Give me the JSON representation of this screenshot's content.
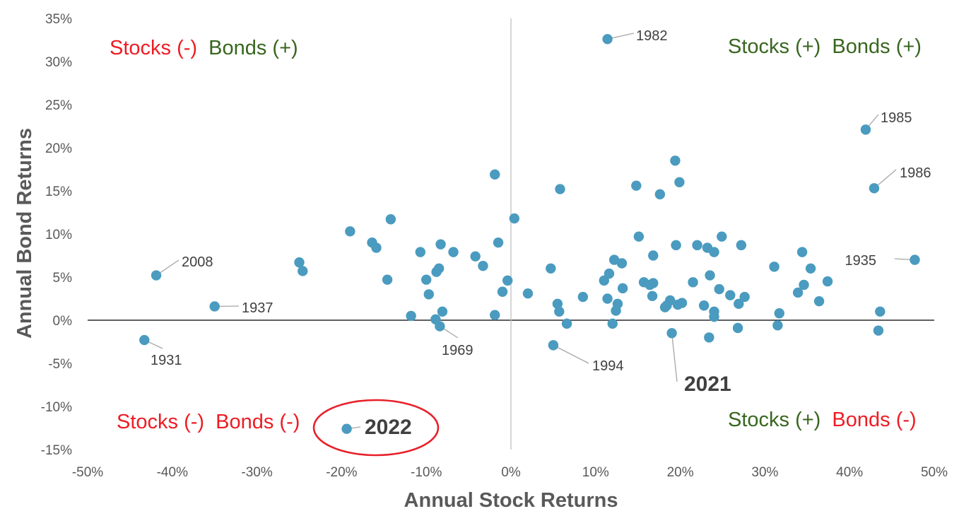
{
  "colors": {
    "point": "#4a9bbf",
    "red": "#ee1c24",
    "green": "#38661f",
    "axis_text": "#595959",
    "leader": "#a6a6a6",
    "circle": "#e8202a"
  },
  "quadrants": {
    "top_left": {
      "stocks": "Stocks (-)",
      "bonds": "Bonds (+)"
    },
    "top_right": {
      "stocks": "Stocks (+)",
      "bonds": "Bonds (+)"
    },
    "bottom_left": {
      "stocks": "Stocks (-)",
      "bonds": "Bonds (-)"
    },
    "bottom_right": {
      "stocks": "Stocks (+)",
      "bonds": "Bonds (-)"
    }
  },
  "chart_data": {
    "type": "scatter",
    "title": "",
    "xlabel": "Annual Stock Returns",
    "ylabel": "Annual Bond Returns",
    "xlim": [
      -50,
      50
    ],
    "ylim": [
      -15,
      35
    ],
    "x_ticks": [
      "-50%",
      "-40%",
      "-30%",
      "-20%",
      "-10%",
      "0%",
      "10%",
      "20%",
      "30%",
      "40%",
      "50%"
    ],
    "y_ticks": [
      "35%",
      "30%",
      "25%",
      "20%",
      "15%",
      "10%",
      "5%",
      "0%",
      "-5%",
      "-10%",
      "-15%"
    ],
    "grid": false,
    "highlight": "2022",
    "labeled_points": [
      {
        "label": "1982",
        "x": 11.4,
        "y": 32.6
      },
      {
        "label": "1985",
        "x": 41.9,
        "y": 22.1
      },
      {
        "label": "1986",
        "x": 42.9,
        "y": 15.3
      },
      {
        "label": "2008",
        "x": -41.9,
        "y": 5.2
      },
      {
        "label": "1935",
        "x": 47.7,
        "y": 7.0
      },
      {
        "label": "1937",
        "x": -35.0,
        "y": 1.6
      },
      {
        "label": "1931",
        "x": -43.3,
        "y": -2.3
      },
      {
        "label": "1969",
        "x": -8.4,
        "y": -0.7
      },
      {
        "label": "1994",
        "x": 5.0,
        "y": -2.9
      },
      {
        "label": "2021",
        "x": 19.0,
        "y": -1.5
      },
      {
        "label": "2022",
        "x": -19.4,
        "y": -12.6
      }
    ],
    "points": [
      [
        -19.0,
        10.3
      ],
      [
        -16.4,
        9.0
      ],
      [
        -15.9,
        8.4
      ],
      [
        -14.2,
        11.7
      ],
      [
        -14.6,
        4.7
      ],
      [
        -25.0,
        6.7
      ],
      [
        -24.6,
        5.7
      ],
      [
        -11.8,
        0.5
      ],
      [
        -10.7,
        7.9
      ],
      [
        -10.0,
        4.7
      ],
      [
        -9.7,
        3.0
      ],
      [
        -8.8,
        5.6
      ],
      [
        -8.5,
        6.0
      ],
      [
        -8.3,
        8.8
      ],
      [
        -8.9,
        0.1
      ],
      [
        -8.1,
        1.0
      ],
      [
        -6.8,
        7.9
      ],
      [
        -4.2,
        7.4
      ],
      [
        -3.3,
        6.3
      ],
      [
        -1.9,
        16.9
      ],
      [
        -1.9,
        0.6
      ],
      [
        -1.5,
        9.0
      ],
      [
        -1.0,
        3.3
      ],
      [
        -0.4,
        4.6
      ],
      [
        0.4,
        11.8
      ],
      [
        2.0,
        3.1
      ],
      [
        4.7,
        6.0
      ],
      [
        5.5,
        1.9
      ],
      [
        5.7,
        1.0
      ],
      [
        5.8,
        15.2
      ],
      [
        6.6,
        -0.4
      ],
      [
        8.5,
        2.7
      ],
      [
        11.0,
        4.6
      ],
      [
        11.4,
        2.5
      ],
      [
        11.6,
        5.4
      ],
      [
        12.0,
        -0.4
      ],
      [
        12.2,
        7.0
      ],
      [
        12.4,
        1.1
      ],
      [
        12.6,
        1.9
      ],
      [
        13.1,
        6.6
      ],
      [
        13.2,
        3.7
      ],
      [
        14.8,
        15.6
      ],
      [
        15.1,
        9.7
      ],
      [
        15.7,
        4.4
      ],
      [
        16.4,
        4.1
      ],
      [
        16.7,
        2.8
      ],
      [
        16.8,
        4.3
      ],
      [
        16.8,
        7.5
      ],
      [
        17.6,
        14.6
      ],
      [
        18.2,
        1.5
      ],
      [
        18.4,
        1.7
      ],
      [
        18.8,
        2.3
      ],
      [
        19.4,
        18.5
      ],
      [
        19.5,
        8.7
      ],
      [
        19.7,
        1.8
      ],
      [
        19.9,
        16.0
      ],
      [
        20.2,
        2.0
      ],
      [
        21.5,
        4.4
      ],
      [
        22.0,
        8.7
      ],
      [
        22.8,
        1.7
      ],
      [
        23.2,
        8.4
      ],
      [
        23.5,
        5.2
      ],
      [
        24.0,
        7.9
      ],
      [
        24.0,
        1.0
      ],
      [
        24.0,
        0.4
      ],
      [
        23.4,
        -2.0
      ],
      [
        24.6,
        3.6
      ],
      [
        24.9,
        9.7
      ],
      [
        25.9,
        2.9
      ],
      [
        26.9,
        1.9
      ],
      [
        26.8,
        -0.9
      ],
      [
        27.2,
        8.7
      ],
      [
        27.6,
        2.7
      ],
      [
        31.1,
        6.2
      ],
      [
        31.5,
        -0.6
      ],
      [
        31.7,
        0.8
      ],
      [
        33.9,
        3.2
      ],
      [
        34.4,
        7.9
      ],
      [
        34.6,
        4.1
      ],
      [
        35.4,
        6.0
      ],
      [
        36.4,
        2.2
      ],
      [
        37.4,
        4.5
      ],
      [
        43.6,
        1.0
      ],
      [
        43.4,
        -1.2
      ]
    ]
  }
}
